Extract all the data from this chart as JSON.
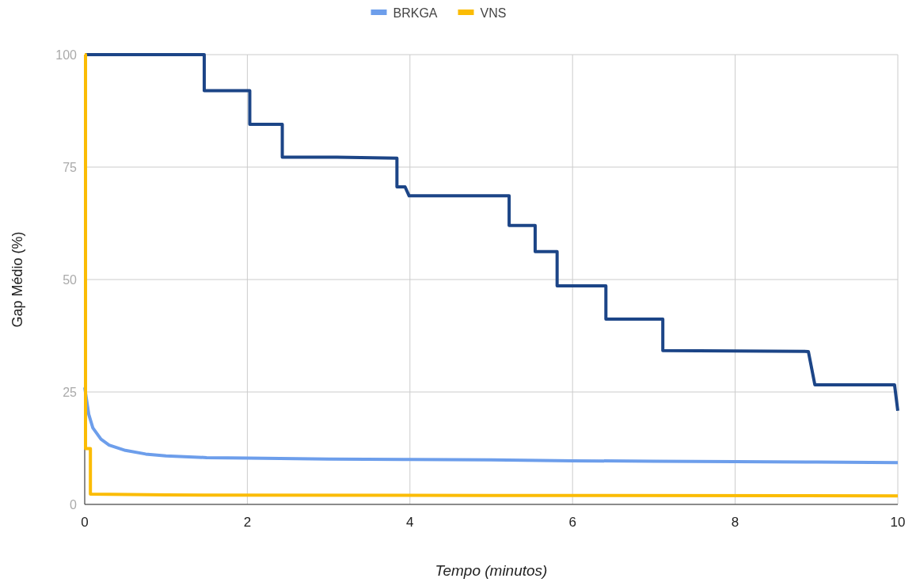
{
  "chart_data": {
    "type": "line",
    "xlabel": "Tempo (minutos)",
    "ylabel": "Gap Médio (%)",
    "xlim": [
      0,
      10
    ],
    "xticks": [
      0,
      2,
      4,
      6,
      8,
      10
    ],
    "ylim": [
      0,
      100
    ],
    "yticks": [
      0,
      25,
      50,
      75,
      100
    ],
    "grid": true,
    "legend": "top",
    "marker": "none",
    "line_style": "solid",
    "series": [
      {
        "color": "#1c4587",
        "x": [
          0,
          1.47,
          1.47,
          2.03,
          2.03,
          2.43,
          2.43,
          3.1,
          3.84,
          3.84,
          3.94,
          3.99,
          5.22,
          5.22,
          5.54,
          5.54,
          5.81,
          5.81,
          6.41,
          6.41,
          7.11,
          7.11,
          8.9,
          8.98,
          9.96,
          10
        ],
        "values": [
          100,
          100,
          92,
          92,
          84.5,
          84.5,
          77.2,
          77.2,
          77,
          70.6,
          70.6,
          68.6,
          68.6,
          62,
          62,
          56.2,
          56.2,
          48.6,
          48.6,
          41.2,
          41.2,
          34.2,
          34,
          26.6,
          26.6,
          20.8
        ]
      },
      {
        "name": "BRKGA",
        "color": "#6d9eeb",
        "x": [
          0,
          0.05,
          0.1,
          0.2,
          0.3,
          0.5,
          0.75,
          1,
          1.5,
          2,
          3,
          4,
          5,
          6,
          7,
          8,
          9,
          10
        ],
        "values": [
          26,
          20,
          17,
          14.5,
          13.2,
          12,
          11.2,
          10.8,
          10.4,
          10.3,
          10.1,
          10,
          9.9,
          9.7,
          9.6,
          9.5,
          9.4,
          9.3
        ]
      },
      {
        "name": "VNS",
        "color": "#fbbc04",
        "x": [
          0,
          0.01,
          0.01,
          0.07,
          0.07,
          1,
          5,
          10
        ],
        "values": [
          100,
          100,
          12.4,
          12.4,
          2.3,
          2.1,
          2,
          1.9
        ]
      }
    ]
  }
}
